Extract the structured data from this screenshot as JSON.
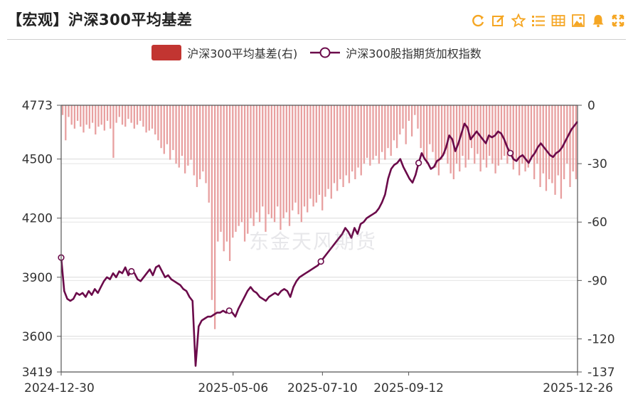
{
  "title": "【宏观】沪深300平均基差",
  "toolbar": {
    "icons": [
      "refresh-icon",
      "edit-icon",
      "star-icon",
      "list-icon",
      "table-icon",
      "image-icon",
      "bell-icon",
      "expand-icon"
    ],
    "accent": "#f5a623"
  },
  "watermark": "东金天风期货",
  "colors": {
    "bar": "#e8a0a0",
    "bar_legend": "#c23531",
    "line": "#6b0a4a"
  },
  "chart_data": {
    "type": "bar+line",
    "legend": [
      "沪深300平均基差(右)",
      "沪深300股指期货加权指数"
    ],
    "legend_placement": "top-center",
    "left_axis": {
      "min": 3419,
      "max": 4773,
      "ticks": [
        3419,
        3600,
        3900,
        4200,
        4500,
        4773
      ]
    },
    "right_axis": {
      "min": -137,
      "max": 0,
      "ticks": [
        0,
        -30,
        -60,
        -90,
        -120,
        -137
      ]
    },
    "x_labels": [
      "2024-12-30",
      "2025-05-06",
      "2025-07-10",
      "2025-09-12",
      "2025-12-26"
    ],
    "x_label_positions": [
      0,
      0.333,
      0.506,
      0.673,
      1.0
    ],
    "basis": [
      -5,
      -18,
      -6,
      -10,
      -12,
      -8,
      -11,
      -14,
      -10,
      -12,
      -9,
      -15,
      -11,
      -10,
      -13,
      -8,
      -12,
      -27,
      -9,
      -6,
      -10,
      -11,
      -7,
      -9,
      -12,
      -10,
      -8,
      -11,
      -14,
      -13,
      -12,
      -15,
      -18,
      -22,
      -25,
      -20,
      -28,
      -23,
      -30,
      -32,
      -26,
      -35,
      -31,
      -28,
      -36,
      -42,
      -38,
      -34,
      -40,
      -50,
      -100,
      -115,
      -70,
      -65,
      -75,
      -70,
      -80,
      -68,
      -65,
      -62,
      -60,
      -70,
      -66,
      -58,
      -62,
      -55,
      -60,
      -52,
      -65,
      -56,
      -58,
      -60,
      -52,
      -64,
      -58,
      -55,
      -62,
      -54,
      -50,
      -56,
      -60,
      -52,
      -55,
      -48,
      -52,
      -50,
      -46,
      -54,
      -47,
      -43,
      -48,
      -40,
      -44,
      -38,
      -42,
      -36,
      -40,
      -34,
      -38,
      -32,
      -36,
      -30,
      -27,
      -31,
      -28,
      -26,
      -30,
      -24,
      -28,
      -22,
      -26,
      -18,
      -22,
      -15,
      -12,
      -20,
      -8,
      -16,
      -5,
      -12,
      -22,
      -26,
      -30,
      -20,
      -24,
      -32,
      -36,
      -28,
      -25,
      -30,
      -35,
      -38,
      -30,
      -34,
      -26,
      -32,
      -28,
      -22,
      -30,
      -25,
      -34,
      -28,
      -32,
      -26,
      -30,
      -35,
      -31,
      -28,
      -26,
      -30,
      -24,
      -33,
      -28,
      -36,
      -30,
      -34,
      -32,
      -28,
      -38,
      -30,
      -42,
      -35,
      -44,
      -38,
      -40,
      -46,
      -36,
      -48,
      -38,
      -30,
      -42,
      -34,
      -38
    ],
    "index": [
      4000,
      3830,
      3790,
      3780,
      3790,
      3820,
      3810,
      3820,
      3800,
      3830,
      3810,
      3840,
      3820,
      3850,
      3880,
      3900,
      3890,
      3920,
      3900,
      3930,
      3920,
      3950,
      3910,
      3930,
      3920,
      3890,
      3880,
      3900,
      3920,
      3940,
      3910,
      3950,
      3960,
      3930,
      3900,
      3910,
      3890,
      3880,
      3870,
      3860,
      3840,
      3830,
      3800,
      3780,
      3450,
      3650,
      3680,
      3690,
      3700,
      3700,
      3710,
      3720,
      3720,
      3730,
      3720,
      3730,
      3720,
      3700,
      3740,
      3770,
      3800,
      3830,
      3850,
      3830,
      3820,
      3800,
      3790,
      3780,
      3800,
      3810,
      3820,
      3810,
      3830,
      3840,
      3830,
      3800,
      3850,
      3880,
      3900,
      3910,
      3920,
      3930,
      3940,
      3950,
      3960,
      3980,
      4000,
      4020,
      4040,
      4060,
      4080,
      4100,
      4120,
      4150,
      4130,
      4100,
      4150,
      4120,
      4170,
      4180,
      4200,
      4210,
      4220,
      4230,
      4250,
      4280,
      4320,
      4400,
      4450,
      4470,
      4480,
      4500,
      4460,
      4430,
      4400,
      4380,
      4420,
      4480,
      4530,
      4500,
      4480,
      4450,
      4460,
      4490,
      4500,
      4520,
      4560,
      4620,
      4600,
      4540,
      4580,
      4630,
      4680,
      4660,
      4600,
      4620,
      4640,
      4620,
      4600,
      4580,
      4620,
      4610,
      4620,
      4640,
      4630,
      4600,
      4560,
      4530,
      4500,
      4490,
      4510,
      4520,
      4500,
      4480,
      4510,
      4530,
      4560,
      4580,
      4560,
      4540,
      4520,
      4510,
      4530,
      4540,
      4560,
      4590,
      4620,
      4650,
      4670,
      4690
    ],
    "markers": [
      0,
      23,
      55,
      85,
      117,
      147,
      172
    ]
  }
}
